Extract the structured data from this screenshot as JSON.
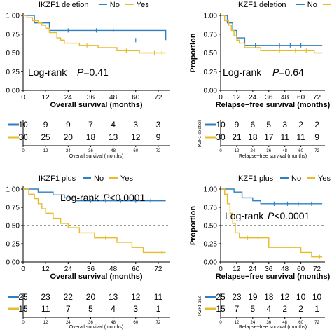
{
  "colors": {
    "no": "#2f7fc1",
    "yes": "#e8bb2a",
    "axis": "#000000",
    "ref": "#333333"
  },
  "chart_data": [
    {
      "type": "line",
      "panel": "top-left",
      "legend_title": "IKZF1 deletion",
      "legend_no": "No",
      "legend_yes": "Yes",
      "ylabel": "",
      "xlabel": "Overall survival (months)",
      "xlim": [
        0,
        78
      ],
      "ylim": [
        0,
        1
      ],
      "xticks": [
        "0",
        "12",
        "24",
        "36",
        "48",
        "60",
        "72"
      ],
      "yticks": [
        "0.00",
        "0.25",
        "0.50",
        "0.75",
        "1.00"
      ],
      "annotation": "Log-rank",
      "pvalue_label": "P",
      "pvalue_value": "=0.41",
      "series": [
        {
          "name": "No",
          "color": "#2f7fc1",
          "x": [
            0,
            6,
            9,
            14,
            18,
            48,
            76
          ],
          "y": [
            1.0,
            0.9,
            0.9,
            0.8,
            0.8,
            0.8,
            0.67
          ],
          "censor": [
            [
              24,
              0.8
            ],
            [
              39,
              0.8
            ],
            [
              48,
              0.8
            ],
            [
              60,
              0.67
            ]
          ]
        },
        {
          "name": "Yes",
          "color": "#e8bb2a",
          "x": [
            0,
            2,
            5,
            8,
            10,
            12,
            14,
            18,
            20,
            22,
            30,
            40,
            50,
            62,
            76
          ],
          "y": [
            1.0,
            0.97,
            0.93,
            0.9,
            0.87,
            0.83,
            0.77,
            0.7,
            0.67,
            0.63,
            0.6,
            0.57,
            0.53,
            0.5,
            0.5
          ],
          "censor": [
            [
              34,
              0.6
            ],
            [
              55,
              0.53
            ],
            [
              70,
              0.5
            ],
            [
              74,
              0.5
            ]
          ]
        }
      ],
      "risk_table": {
        "xlabel": "Overall survival (months)",
        "side_label": "",
        "x_ticks": [
          "0",
          "12",
          "24",
          "36",
          "48",
          "60",
          "72"
        ],
        "no": [
          "10",
          "9",
          "9",
          "7",
          "4",
          "3",
          "3"
        ],
        "yes": [
          "30",
          "25",
          "20",
          "18",
          "13",
          "12",
          "9"
        ]
      }
    },
    {
      "type": "line",
      "panel": "top-right",
      "legend_title": "IKZF1 deletion",
      "legend_no": "No",
      "legend_yes": "Yes",
      "ylabel": "Proportion",
      "xlabel": "Relapse−free survival (months)",
      "xlim": [
        0,
        78
      ],
      "ylim": [
        0,
        1
      ],
      "xticks": [
        "0",
        "12",
        "24",
        "36",
        "48",
        "60",
        "72"
      ],
      "yticks": [
        "0.00",
        "0.25",
        "0.50",
        "0.75",
        "1.00"
      ],
      "annotation": "Log-rank",
      "pvalue_label": "P",
      "pvalue_value": "=0.64",
      "series": [
        {
          "name": "No",
          "color": "#2f7fc1",
          "x": [
            0,
            5,
            9,
            12,
            14,
            18,
            22,
            48,
            76
          ],
          "y": [
            1.0,
            0.9,
            0.8,
            0.7,
            0.7,
            0.6,
            0.6,
            0.6,
            0.6
          ],
          "censor": [
            [
              26,
              0.6
            ],
            [
              44,
              0.6
            ],
            [
              52,
              0.6
            ],
            [
              60,
              0.6
            ]
          ]
        },
        {
          "name": "Yes",
          "color": "#e8bb2a",
          "x": [
            0,
            3,
            6,
            8,
            10,
            12,
            14,
            18,
            24,
            30,
            38,
            70,
            76
          ],
          "y": [
            1.0,
            0.93,
            0.87,
            0.8,
            0.73,
            0.67,
            0.63,
            0.57,
            0.57,
            0.53,
            0.53,
            0.5,
            0.5
          ],
          "censor": [
            [
              28,
              0.57
            ],
            [
              44,
              0.53
            ],
            [
              56,
              0.53
            ],
            [
              64,
              0.53
            ]
          ]
        }
      ],
      "risk_table": {
        "xlabel": "Relapse−free survival (months)",
        "side_label": "IKZF1 deletion",
        "x_ticks": [
          "0",
          "12",
          "24",
          "36",
          "48",
          "60",
          "72"
        ],
        "no": [
          "10",
          "9",
          "6",
          "5",
          "3",
          "2",
          "2"
        ],
        "yes": [
          "30",
          "21",
          "18",
          "17",
          "11",
          "11",
          "9"
        ]
      }
    },
    {
      "type": "line",
      "panel": "bottom-left",
      "legend_title": "IKZF1 plus",
      "legend_no": "No",
      "legend_yes": "Yes",
      "ylabel": "",
      "xlabel": "Overall survival (months)",
      "xlim": [
        0,
        78
      ],
      "ylim": [
        0,
        1
      ],
      "xticks": [
        "0",
        "12",
        "24",
        "36",
        "48",
        "60",
        "72"
      ],
      "yticks": [
        "0.00",
        "0.25",
        "0.50",
        "0.75",
        "1.00"
      ],
      "annotation": "Log-rank",
      "pvalue_label": "P",
      "pvalue_value": "<0.0001",
      "series": [
        {
          "name": "No",
          "color": "#2f7fc1",
          "x": [
            0,
            8,
            16,
            22,
            28,
            76
          ],
          "y": [
            1.0,
            0.96,
            0.92,
            0.88,
            0.84,
            0.84
          ],
          "censor": [
            [
              36,
              0.84
            ],
            [
              44,
              0.84
            ],
            [
              52,
              0.84
            ],
            [
              60,
              0.84
            ],
            [
              68,
              0.84
            ]
          ]
        },
        {
          "name": "Yes",
          "color": "#e8bb2a",
          "x": [
            0,
            3,
            6,
            8,
            10,
            12,
            16,
            20,
            24,
            30,
            38,
            50,
            58,
            64,
            70,
            76
          ],
          "y": [
            1.0,
            0.93,
            0.87,
            0.8,
            0.73,
            0.67,
            0.6,
            0.53,
            0.47,
            0.4,
            0.33,
            0.27,
            0.2,
            0.13,
            0.13,
            0.13
          ],
          "censor": [
            [
              44,
              0.33
            ],
            [
              74,
              0.13
            ]
          ]
        }
      ],
      "risk_table": {
        "xlabel": "Overall survival (months)",
        "side_label": "",
        "x_ticks": [
          "0",
          "12",
          "24",
          "36",
          "48",
          "60",
          "72"
        ],
        "no": [
          "25",
          "23",
          "22",
          "20",
          "13",
          "12",
          "11"
        ],
        "yes": [
          "15",
          "11",
          "7",
          "5",
          "4",
          "3",
          "1"
        ]
      }
    },
    {
      "type": "line",
      "panel": "bottom-right",
      "legend_title": "IKZF1 plus",
      "legend_no": "No",
      "legend_yes": "Yes",
      "ylabel": "Proportion",
      "xlabel": "Relapse−free survival (months)",
      "xlim": [
        0,
        78
      ],
      "ylim": [
        0,
        1
      ],
      "xticks": [
        "0",
        "12",
        "24",
        "36",
        "48",
        "60",
        "72"
      ],
      "yticks": [
        "0.00",
        "0.25",
        "0.50",
        "0.75",
        "1.00"
      ],
      "annotation": "Log-rank",
      "pvalue_label": "P",
      "pvalue_value": "<0.0001",
      "series": [
        {
          "name": "No",
          "color": "#2f7fc1",
          "x": [
            0,
            10,
            16,
            24,
            30,
            76
          ],
          "y": [
            1.0,
            0.96,
            0.88,
            0.84,
            0.8,
            0.8
          ],
          "censor": [
            [
              40,
              0.8
            ],
            [
              50,
              0.8
            ],
            [
              58,
              0.8
            ],
            [
              68,
              0.8
            ]
          ]
        },
        {
          "name": "Yes",
          "color": "#e8bb2a",
          "x": [
            0,
            3,
            5,
            7,
            9,
            11,
            14,
            24,
            36,
            46,
            60,
            68,
            76
          ],
          "y": [
            1.0,
            0.93,
            0.8,
            0.67,
            0.53,
            0.4,
            0.33,
            0.33,
            0.2,
            0.2,
            0.13,
            0.07,
            0.07
          ],
          "censor": [
            [
              20,
              0.33
            ],
            [
              28,
              0.33
            ],
            [
              74,
              0.07
            ]
          ]
        }
      ],
      "risk_table": {
        "xlabel": "Relapse−free survival (months)",
        "side_label": "IKZF1 plus",
        "x_ticks": [
          "0",
          "12",
          "24",
          "36",
          "48",
          "60",
          "72"
        ],
        "no": [
          "25",
          "23",
          "19",
          "18",
          "12",
          "10",
          "10"
        ],
        "yes": [
          "15",
          "7",
          "5",
          "4",
          "2",
          "2",
          "1"
        ]
      }
    }
  ]
}
